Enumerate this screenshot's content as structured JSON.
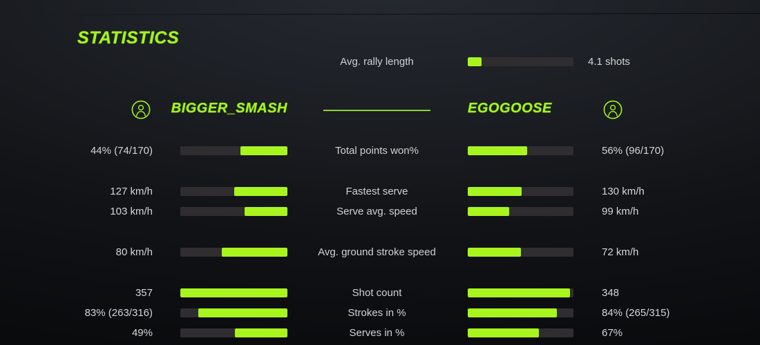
{
  "title": "STATISTICS",
  "colors": {
    "accent_green": "#a4f41d",
    "bar_fill_green": "#a8f51e",
    "bar_track": "#2f2d30",
    "text": "#d3d6d8",
    "background_dark": "#121317"
  },
  "rally": {
    "label": "Avg. rally length",
    "value": "4.1 shots",
    "fill_pct": 13
  },
  "players": {
    "left": {
      "name": "BIGGER_SMASH",
      "icon": "person-icon"
    },
    "right": {
      "name": "EGOGOOSE",
      "icon": "person-icon"
    }
  },
  "rows": [
    {
      "label": "Total points won%",
      "left_value": "44% (74/170)",
      "left_fill": 44,
      "right_value": "56% (96/170)",
      "right_fill": 56
    },
    {
      "label": "Fastest serve",
      "left_value": "127 km/h",
      "left_fill": 50,
      "right_value": "130 km/h",
      "right_fill": 51
    },
    {
      "label": "Serve avg. speed",
      "left_value": "103 km/h",
      "left_fill": 40,
      "right_value": "99 km/h",
      "right_fill": 39
    },
    {
      "label": "Avg. ground stroke speed",
      "left_value": "80 km/h",
      "left_fill": 61,
      "right_value": "72 km/h",
      "right_fill": 50
    },
    {
      "label": "Shot count",
      "left_value": "357",
      "left_fill": 100,
      "right_value": "348",
      "right_fill": 97
    },
    {
      "label": "Strokes in %",
      "left_value": "83% (263/316)",
      "left_fill": 83,
      "right_value": "84% (265/315)",
      "right_fill": 84
    },
    {
      "label": "Serves in %",
      "left_value": "49%",
      "left_fill": 49,
      "right_value": "67%",
      "right_fill": 67
    }
  ]
}
